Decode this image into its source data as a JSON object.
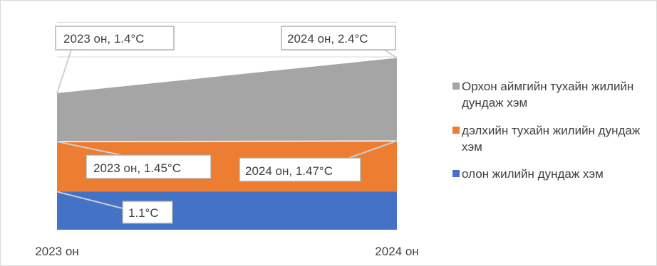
{
  "chart_data": {
    "type": "area",
    "stacked": true,
    "x": [
      "2023 он",
      "2024 он"
    ],
    "series": [
      {
        "name": "олон жилийн дундаж хэм",
        "values": [
          1.1,
          1.1
        ],
        "color": "#4472C4"
      },
      {
        "name": "дэлхийн тухайн жилийн дундаж хэм",
        "values": [
          1.45,
          1.47
        ],
        "color": "#ED7D31"
      },
      {
        "name": "Орхон аймгийн тухайн жилийн дундаж хэм",
        "values": [
          1.4,
          2.4
        ],
        "color": "#A5A5A5"
      }
    ],
    "data_labels": {
      "baseline": "1.1°C",
      "global_2023": "2023 он, 1.45°C",
      "global_2024": "2024 он, 1.47°C",
      "orkhon_2023": "2023 он, 1.4°C",
      "orkhon_2024": "2024 он, 2.4°C"
    },
    "legend_position": "right",
    "grid": true
  }
}
